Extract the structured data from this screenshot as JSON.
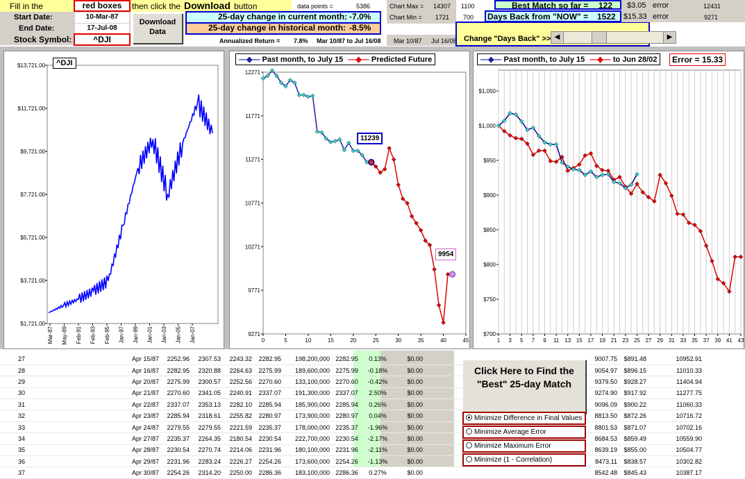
{
  "header": {
    "fill_in": "Fill in the",
    "red_boxes": "red boxes",
    "then_click": "then click the",
    "download_word": "Download",
    "button_word": "button",
    "start_label": "Start Date:",
    "start_value": "10-Mar-87",
    "end_label": "End Date:",
    "end_value": "17-Jul-08",
    "symbol_label": "Stock Symbol:",
    "symbol_value": "^DJI",
    "download_btn": "Download Data",
    "data_points_label": "data points =",
    "data_points_value": "5386",
    "chart25_label": "25-day change in current month:",
    "chart25_value": "-7.0%",
    "hist25_label": "25-day change in historical month:",
    "hist25_value": "-8.5%",
    "annual_label": "Annualized Return =",
    "annual_value": "7.8%",
    "annual_range": "Mar 10/87 to Jul 16/08",
    "chart_max_label": "Chart Max =",
    "chart_max_a": "14307",
    "chart_max_b": "1100",
    "chart_min_label": "Chart Min =",
    "chart_min_a": "1721",
    "chart_min_b": "700",
    "range_a": "Mar 10/87",
    "range_b": "Jul 16/08",
    "best_label": "Best Match so far =",
    "best_value": "122",
    "days_label": "Days Back from \"NOW\" =",
    "days_value": "1522",
    "err1_val": "$3.05",
    "err1_lbl": "error",
    "err1_num": "12431",
    "err2_val": "$15.33",
    "err2_lbl": "error",
    "err2_num": "9271",
    "change_days_btn": "Change \"Days Back\" >>"
  },
  "chart1": {
    "title": "^DJI",
    "y_ticks": [
      "$13,721.00",
      "$11,721.00",
      "$9,721.00",
      "$7,721.00",
      "$5,721.00",
      "$3,721.00",
      "$1,721.00"
    ],
    "x_ticks": [
      "Mar-87",
      "May-89",
      "Feb-91",
      "Feb-93",
      "Feb-95",
      "Jan-97",
      "Jan-99",
      "Jan-01",
      "Jan-03",
      "Jan-05",
      "Jan-07"
    ]
  },
  "chart2": {
    "legend_a": "Past month, to July 15",
    "legend_b": "Predicted Future",
    "y_ticks": [
      "12271",
      "11771",
      "11271",
      "10771",
      "10271",
      "9771",
      "9271"
    ],
    "x_ticks": [
      "0",
      "5",
      "10",
      "15",
      "20",
      "25",
      "30",
      "35",
      "40",
      "45"
    ],
    "label_a": "11239",
    "label_b": "9954",
    "colors": {
      "past": "#1f1f9f",
      "past_marker": "#33cccc",
      "future": "#e00000"
    }
  },
  "chart3": {
    "legend_a": "Past month, to July 15",
    "legend_b": "to Jun 28/02",
    "error_label": "Error = 15.33",
    "y_ticks": [
      "$1,050",
      "$1,000",
      "$950",
      "$900",
      "$850",
      "$800",
      "$750",
      "$700"
    ],
    "x_ticks": [
      "1",
      "3",
      "5",
      "7",
      "9",
      "11",
      "13",
      "15",
      "17",
      "19",
      "21",
      "23",
      "25",
      "27",
      "29",
      "31",
      "33",
      "35",
      "37",
      "39",
      "41",
      "43"
    ]
  },
  "chart_data": [
    {
      "type": "line",
      "title": "^DJI",
      "series": [
        {
          "name": "^DJI",
          "x": [
            "Mar-87",
            "May-89",
            "Feb-91",
            "Feb-93",
            "Feb-95",
            "Jan-97",
            "Jan-99",
            "Jan-01",
            "Jan-03",
            "Jan-05",
            "Jan-07",
            "Jul-08"
          ],
          "values": [
            2250,
            2600,
            2900,
            3300,
            3800,
            6500,
            9300,
            10700,
            8000,
            10500,
            12500,
            11000
          ]
        }
      ],
      "ylim": [
        1721,
        14307
      ]
    },
    {
      "type": "line",
      "series": [
        {
          "name": "Past month, to July 15",
          "x": [
            0,
            1,
            2,
            3,
            4,
            5,
            6,
            7,
            8,
            9,
            10,
            11,
            12,
            13,
            14,
            15,
            16,
            17,
            18,
            19,
            20,
            21,
            22,
            23,
            24
          ],
          "values": [
            12200,
            12230,
            12290,
            12230,
            12150,
            12110,
            12180,
            12150,
            12010,
            12010,
            11990,
            12000,
            11590,
            11580,
            11510,
            11470,
            11480,
            11500,
            11380,
            11460,
            11370,
            11370,
            11320,
            11240,
            11239
          ]
        },
        {
          "name": "Predicted Future",
          "x": [
            24,
            25,
            26,
            27,
            28,
            29,
            30,
            31,
            32,
            33,
            34,
            35,
            36,
            37,
            38,
            39,
            40,
            41,
            42
          ],
          "values": [
            11239,
            11190,
            11120,
            11160,
            11400,
            11270,
            10980,
            10820,
            10770,
            10620,
            10540,
            10460,
            10340,
            10290,
            10010,
            9600,
            9400,
            9954,
            9954
          ]
        }
      ],
      "ylim": [
        9271,
        12271
      ]
    },
    {
      "type": "line",
      "series": [
        {
          "name": "Past month, to July 15",
          "x": [
            1,
            2,
            3,
            4,
            5,
            6,
            7,
            8,
            9,
            10,
            11,
            12,
            13,
            14,
            15,
            16,
            17,
            18,
            19,
            20,
            21,
            22,
            23,
            24,
            25
          ],
          "values": [
            1000,
            1007,
            1018,
            1016,
            1006,
            994,
            997,
            985,
            976,
            973,
            973,
            947,
            941,
            937,
            936,
            929,
            934,
            926,
            929,
            930,
            919,
            917,
            910,
            915,
            930
          ]
        },
        {
          "name": "to Jun 28/02",
          "x": [
            1,
            2,
            3,
            4,
            5,
            6,
            7,
            8,
            9,
            10,
            11,
            12,
            13,
            14,
            15,
            16,
            17,
            18,
            19,
            20,
            21,
            22,
            23,
            24,
            25,
            26,
            27,
            28,
            29,
            30,
            31,
            32,
            33,
            34,
            35,
            36,
            37,
            38,
            39,
            40,
            41,
            42,
            43
          ],
          "values": [
            1000,
            992,
            986,
            982,
            981,
            974,
            958,
            964,
            964,
            949,
            948,
            955,
            935,
            939,
            944,
            957,
            960,
            942,
            936,
            935,
            922,
            926,
            912,
            902,
            916,
            904,
            897,
            891,
            929,
            917,
            899,
            873,
            872,
            860,
            857,
            848,
            827,
            805,
            779,
            773,
            761,
            811,
            811
          ]
        }
      ],
      "ylim": [
        700,
        1080
      ]
    }
  ],
  "option_box": {
    "find_btn": "Click Here to Find the \"Best\" 25-day Match",
    "opt1": "Minimize Difference in Final Values",
    "opt2": "Minimize Average Error",
    "opt3": "Minimize Maximum Error",
    "opt4": "Minimize (1 - Correlation)"
  },
  "rows": [
    [
      "27",
      "Apr 15/87",
      "2252.96",
      "2307.53",
      "2243.32",
      "2282.95",
      "198,200,000",
      "2282.95",
      "0.13%",
      "$0.00",
      "9007.75",
      "$891.48",
      "10952.91"
    ],
    [
      "28",
      "Apr 16/87",
      "2282.95",
      "2320.88",
      "2264.63",
      "2275.99",
      "189,600,000",
      "2275.99",
      "-0.18%",
      "$0.00",
      "9054.97",
      "$896.15",
      "11010.33"
    ],
    [
      "29",
      "Apr 20/87",
      "2275.99",
      "2300.57",
      "2252.56",
      "2270.60",
      "133,100,000",
      "2270.60",
      "-0.42%",
      "$0.00",
      "9379.50",
      "$928.27",
      "11404.94"
    ],
    [
      "30",
      "Apr 21/87",
      "2270.60",
      "2341.05",
      "2240.91",
      "2337.07",
      "191,300,000",
      "2337.07",
      "2.50%",
      "$0.00",
      "9274.90",
      "$917.92",
      "11277.75"
    ],
    [
      "31",
      "Apr 22/87",
      "2337.07",
      "2353.13",
      "2282.10",
      "2285.94",
      "185,900,000",
      "2285.94",
      "0.26%",
      "$0.00",
      "9096.09",
      "$900.22",
      "11060.33"
    ],
    [
      "32",
      "Apr 23/87",
      "2285.94",
      "2318.61",
      "2255.82",
      "2280.97",
      "173,900,000",
      "2280.97",
      "0.04%",
      "$0.00",
      "8813.50",
      "$872.26",
      "10716.72"
    ],
    [
      "33",
      "Apr 24/87",
      "2279.55",
      "2279.55",
      "2221.59",
      "2235.37",
      "178,000,000",
      "2235.37",
      "-1.96%",
      "$0.00",
      "8801.53",
      "$871.07",
      "10702.16"
    ],
    [
      "34",
      "Apr 27/87",
      "2235.37",
      "2264.35",
      "2180.54",
      "2230.54",
      "222,700,000",
      "2230.54",
      "-2.17%",
      "$0.00",
      "8684.53",
      "$859.49",
      "10559.90"
    ],
    [
      "35",
      "Apr 28/87",
      "2230.54",
      "2270.74",
      "2214.06",
      "2231.96",
      "180,100,000",
      "2231.96",
      "-2.11%",
      "$0.00",
      "8639.19",
      "$855.00",
      "10504.77"
    ],
    [
      "36",
      "Apr 29/87",
      "2231.96",
      "2283.24",
      "2226.27",
      "2254.26",
      "173,600,000",
      "2254.26",
      "-1.13%",
      "$0.00",
      "8473.11",
      "$838.57",
      "10302.82"
    ],
    [
      "37",
      "Apr 30/87",
      "2254.26",
      "2314.20",
      "2250.00",
      "2286.36",
      "183,100,000",
      "2286.36",
      "0.27%",
      "$0.00",
      "8542.48",
      "$845.43",
      "10387.17"
    ]
  ]
}
